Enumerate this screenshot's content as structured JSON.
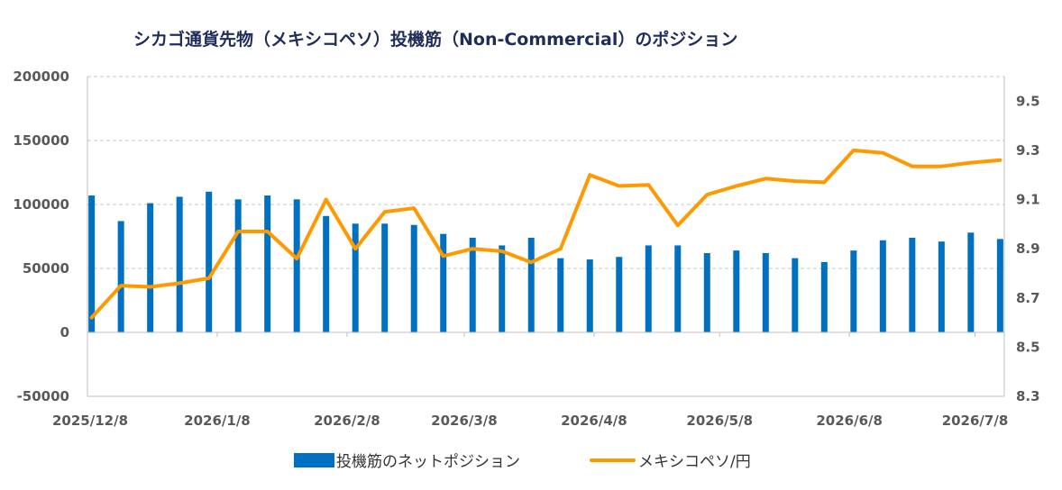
{
  "chart_data": {
    "type": "bar+line",
    "title": "シカゴ通貨先物（メキシコペソ）投機筋（Non-Commercial）のポジション",
    "x_tick_labels": [
      "2025/12/8",
      "2026/1/8",
      "2026/2/8",
      "2026/3/8",
      "2026/4/8",
      "2026/5/8",
      "2026/6/8",
      "2026/7/8"
    ],
    "dates": [
      "2025-12-09",
      "2025-12-16",
      "2025-12-23",
      "2025-12-30",
      "2026-01-06",
      "2026-01-13",
      "2026-01-20",
      "2026-01-27",
      "2026-02-03",
      "2026-02-10",
      "2026-02-17",
      "2026-02-24",
      "2026-03-03",
      "2026-03-10",
      "2026-03-17",
      "2026-03-24",
      "2026-03-31",
      "2026-04-07",
      "2026-04-14",
      "2026-04-21",
      "2026-04-28",
      "2026-05-05",
      "2026-05-12",
      "2026-05-19",
      "2026-05-26",
      "2026-06-02",
      "2026-06-09",
      "2026-06-16",
      "2026-06-23",
      "2026-06-30",
      "2026-07-07",
      "2026-07-14"
    ],
    "y_left": {
      "min": -50000,
      "max": 200000,
      "ticks": [
        -50000,
        0,
        50000,
        100000,
        150000,
        200000
      ]
    },
    "y_right": {
      "min": 8.3,
      "max": 9.6,
      "ticks": [
        8.3,
        8.5,
        8.7,
        8.9,
        9.1,
        9.3,
        9.5
      ]
    },
    "grid": true,
    "legend_position": "bottom",
    "series": [
      {
        "name": "投機筋のネットポジション",
        "type": "bar",
        "axis": "left",
        "color": "#0070c0",
        "values": [
          107000,
          87000,
          101000,
          106000,
          110000,
          104000,
          107000,
          104000,
          91000,
          85000,
          85000,
          84000,
          77000,
          74000,
          68000,
          74000,
          58000,
          57000,
          59000,
          68000,
          68000,
          62000,
          64000,
          62000,
          58000,
          55000,
          64000,
          72000,
          74000,
          71000,
          78000,
          73000
        ]
      },
      {
        "name": "メキシコペソ/円",
        "type": "line",
        "axis": "right",
        "color": "#ff9900",
        "values": [
          8.62,
          8.75,
          8.745,
          8.76,
          8.78,
          8.97,
          8.97,
          8.86,
          9.1,
          8.9,
          9.05,
          9.065,
          8.87,
          8.9,
          8.89,
          8.845,
          8.9,
          9.2,
          9.155,
          9.16,
          8.995,
          9.12,
          9.155,
          9.185,
          9.175,
          9.17,
          9.3,
          9.29,
          9.235,
          9.235,
          9.25,
          9.26
        ]
      }
    ]
  }
}
